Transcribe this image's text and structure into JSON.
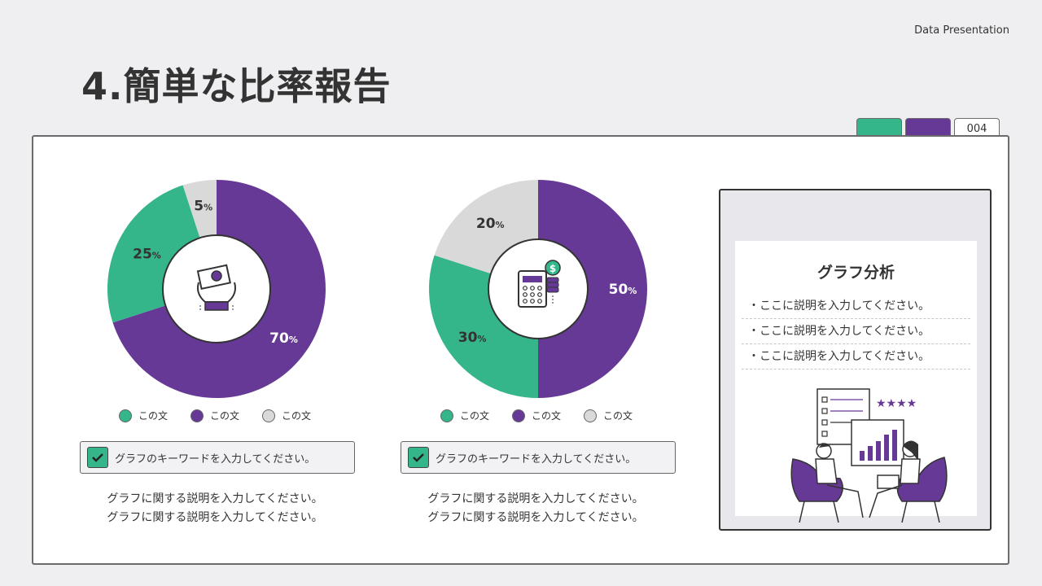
{
  "header": {
    "brand": "Data Presentation",
    "title": "4.簡単な比率報告",
    "page_number": "004"
  },
  "colors": {
    "green": "#35b58a",
    "purple": "#673997",
    "gray": "#d9d9d9"
  },
  "chart_data": [
    {
      "type": "pie",
      "categories": [
        "この文",
        "この文",
        "この文"
      ],
      "values": [
        70,
        25,
        5
      ],
      "labels": [
        "70",
        "25",
        "5"
      ],
      "unit": "%",
      "colors": [
        "#673997",
        "#35b58a",
        "#d9d9d9"
      ],
      "center_icon": "money-hands-icon"
    },
    {
      "type": "pie",
      "categories": [
        "この文",
        "この文",
        "この文"
      ],
      "values": [
        50,
        30,
        20
      ],
      "labels": [
        "50",
        "30",
        "20"
      ],
      "unit": "%",
      "colors": [
        "#673997",
        "#35b58a",
        "#d9d9d9"
      ],
      "center_icon": "calculator-coins-icon"
    }
  ],
  "legend": [
    {
      "label": "この文",
      "color": "#35b58a"
    },
    {
      "label": "この文",
      "color": "#673997"
    },
    {
      "label": "この文",
      "color": "#d9d9d9"
    }
  ],
  "cards": [
    {
      "keyword": "グラフのキーワードを入力してください。",
      "desc1": "グラフに関する説明を入力してください。",
      "desc2": "グラフに関する説明を入力してください。"
    },
    {
      "keyword": "グラフのキーワードを入力してください。",
      "desc1": "グラフに関する説明を入力してください。",
      "desc2": "グラフに関する説明を入力してください。"
    }
  ],
  "side": {
    "title": "グラフ分析",
    "bullets": [
      "・ここに説明を入力してください。",
      "・ここに説明を入力してください。",
      "・ここに説明を入力してください。"
    ],
    "illustration": "people-meeting-chart-illustration"
  }
}
